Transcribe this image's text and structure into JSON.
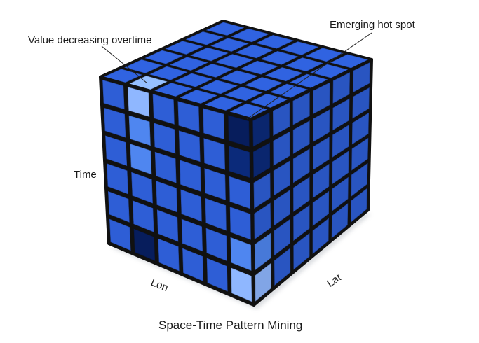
{
  "labels": {
    "value_decreasing": "Value decreasing overtime",
    "emerging_hot_spot": "Emerging hot spot",
    "time_axis": "Time",
    "lon_axis": "Lon",
    "lat_axis": "Lat",
    "caption": "Space-Time Pattern Mining"
  },
  "cube": {
    "grid_size": 6,
    "colors": {
      "base": "#2e5ed6",
      "light": "#8fb7ff",
      "mid_light": "#4f86f0",
      "dark": "#0b2a7a",
      "darkest": "#071d5c",
      "border": "#111111"
    },
    "highlighted_cells": [
      {
        "face": "top",
        "row": 5,
        "col": 1,
        "level": "light"
      },
      {
        "face": "front",
        "row": 0,
        "col": 1,
        "level": "light"
      },
      {
        "face": "front",
        "row": 1,
        "col": 1,
        "level": "mid_light"
      },
      {
        "face": "front",
        "row": 2,
        "col": 1,
        "level": "mid_light"
      },
      {
        "face": "front",
        "row": 5,
        "col": 1,
        "level": "darkest"
      },
      {
        "face": "front",
        "row": 0,
        "col": 5,
        "level": "darkest"
      },
      {
        "face": "front",
        "row": 1,
        "col": 5,
        "level": "dark"
      },
      {
        "face": "front",
        "row": 4,
        "col": 5,
        "level": "mid_light"
      },
      {
        "face": "front",
        "row": 5,
        "col": 5,
        "level": "light"
      },
      {
        "face": "right",
        "row": 0,
        "col": 0,
        "level": "dark"
      },
      {
        "face": "right",
        "row": 1,
        "col": 0,
        "level": "dark"
      },
      {
        "face": "right",
        "row": 4,
        "col": 0,
        "level": "mid_light"
      },
      {
        "face": "right",
        "row": 5,
        "col": 0,
        "level": "light"
      }
    ]
  }
}
